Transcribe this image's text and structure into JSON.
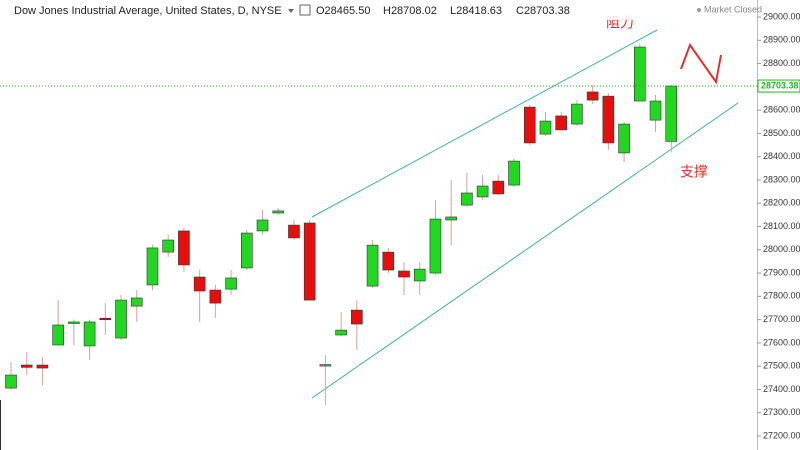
{
  "header": {
    "title": "Dow Jones Industrial Average, United States, D, NYSE",
    "open": "O28465.50",
    "high": "H28708.02",
    "low": "L28418.63",
    "close": "C28703.38",
    "status": "Market Closed"
  },
  "chart_data": {
    "type": "candlestick",
    "up_color": "#22d622",
    "down_color": "#e41010",
    "open": [
      27406,
      27505,
      27505,
      27591,
      27685,
      27587,
      27706,
      27621,
      27758,
      27849,
      27990,
      28081,
      27883,
      27827,
      27831,
      27922,
      28081,
      28158,
      28106,
      28115,
      27503,
      27634,
      27741,
      27844,
      27990,
      27909,
      27866,
      27900,
      28128,
      28192,
      28227,
      28295,
      28278,
      28613,
      28497,
      28575,
      28540,
      28678,
      28660,
      28416,
      28639,
      28557,
      28465.5
    ],
    "high": [
      27518,
      27561,
      27540,
      27784,
      27700,
      27700,
      27771,
      27806,
      27827,
      28021,
      28064,
      28094,
      27913,
      27849,
      27913,
      28085,
      28171,
      28180,
      28128,
      28128,
      27548,
      27733,
      27784,
      28042,
      28008,
      27947,
      27947,
      28214,
      28300,
      28330,
      28321,
      28321,
      28394,
      28622,
      28592,
      28592,
      28643,
      28708,
      28673,
      28549,
      28884,
      28665,
      28708.02
    ],
    "low": [
      27398,
      27462,
      27419,
      27591,
      27590,
      27527,
      27634,
      27612,
      27690,
      27827,
      27969,
      27905,
      27690,
      27707,
      27806,
      27913,
      28064,
      28150,
      28042,
      27784,
      27333,
      27630,
      27569,
      27836,
      27900,
      27806,
      27806,
      27892,
      28019,
      28184,
      28214,
      28235,
      28270,
      28450,
      28489,
      28515,
      28532,
      28626,
      28429,
      28377,
      28639,
      28506,
      28418.63
    ],
    "close": [
      27462,
      27495,
      27492,
      27677,
      27690,
      27690,
      27703,
      27784,
      27793,
      28008,
      28042,
      27935,
      27823,
      27771,
      27879,
      28072,
      28128,
      28167,
      28051,
      27784,
      27507,
      27655,
      27681,
      28020,
      27913,
      27883,
      27917,
      28132,
      28141,
      28244,
      28274,
      28240,
      28381,
      28459,
      28553,
      28515,
      28626,
      28643,
      28459,
      28540,
      28871,
      28639,
      28703.38
    ],
    "ylim": [
      27140,
      29073
    ],
    "yticks": [
      {
        "value": 27200,
        "label": "27200.00"
      },
      {
        "value": 27300,
        "label": "27300.00"
      },
      {
        "value": 27400,
        "label": "27400.00"
      },
      {
        "value": 27500,
        "label": "27500.00"
      },
      {
        "value": 27600,
        "label": "27600.00"
      },
      {
        "value": 27700,
        "label": "27700.00"
      },
      {
        "value": 27800,
        "label": "27800.00"
      },
      {
        "value": 27900,
        "label": "27900.00"
      },
      {
        "value": 28000,
        "label": "28000.00"
      },
      {
        "value": 28100,
        "label": "28100.00"
      },
      {
        "value": 28200,
        "label": "28200.00"
      },
      {
        "value": 28300,
        "label": "28300.00"
      },
      {
        "value": 28400,
        "label": "28400.00"
      },
      {
        "value": 28500,
        "label": "28500.00"
      },
      {
        "value": 28600,
        "label": "28600.00"
      },
      {
        "value": 28700,
        "label": "28700.00"
      },
      {
        "value": 28800,
        "label": "28800.00"
      },
      {
        "value": 28900,
        "label": "28900.00"
      },
      {
        "value": 29000,
        "label": "29000.00"
      }
    ],
    "last_price": 28703.38,
    "last_price_color": "#22b422",
    "annotations": {
      "resistance": "阻力",
      "support": "支撑"
    }
  }
}
